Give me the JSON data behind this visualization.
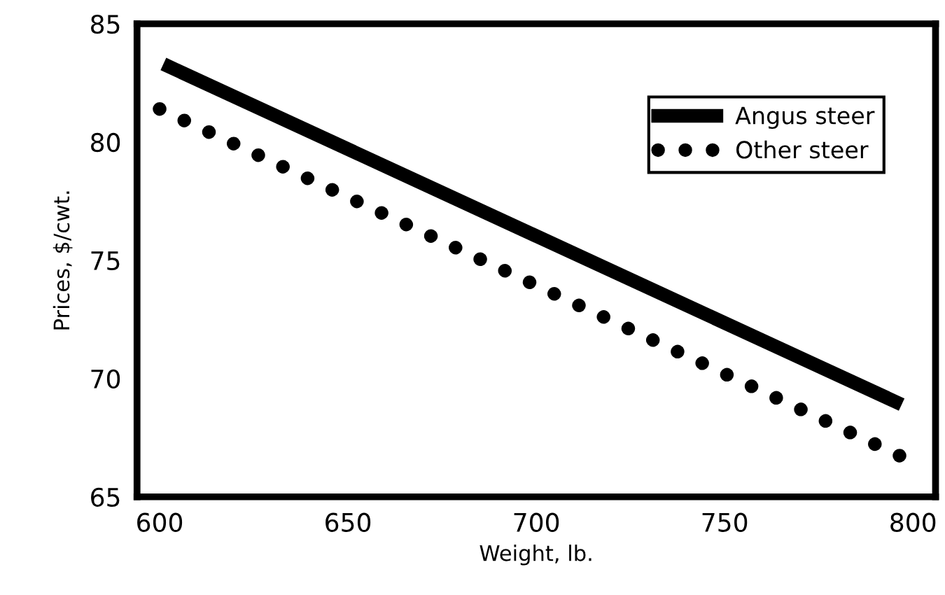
{
  "chart_data": {
    "type": "line",
    "xlabel": "Weight, lb.",
    "ylabel": "Prices, $/cwt.",
    "xlim": [
      594,
      806
    ],
    "ylim": [
      65,
      85
    ],
    "xticks": [
      600,
      650,
      700,
      750,
      800
    ],
    "yticks": [
      65,
      70,
      75,
      80,
      85
    ],
    "grid": false,
    "legend": "top right",
    "marker": "none",
    "series": [
      {
        "name": "Angus steer",
        "color": "#000000",
        "line_style": "solid",
        "x": [
          601,
          797
        ],
        "values": [
          83.3,
          68.9
        ]
      },
      {
        "name": "Other steer",
        "color": "#000000",
        "line_style": "dotted",
        "x": [
          600,
          797
        ],
        "values": [
          81.4,
          66.7
        ]
      }
    ]
  }
}
